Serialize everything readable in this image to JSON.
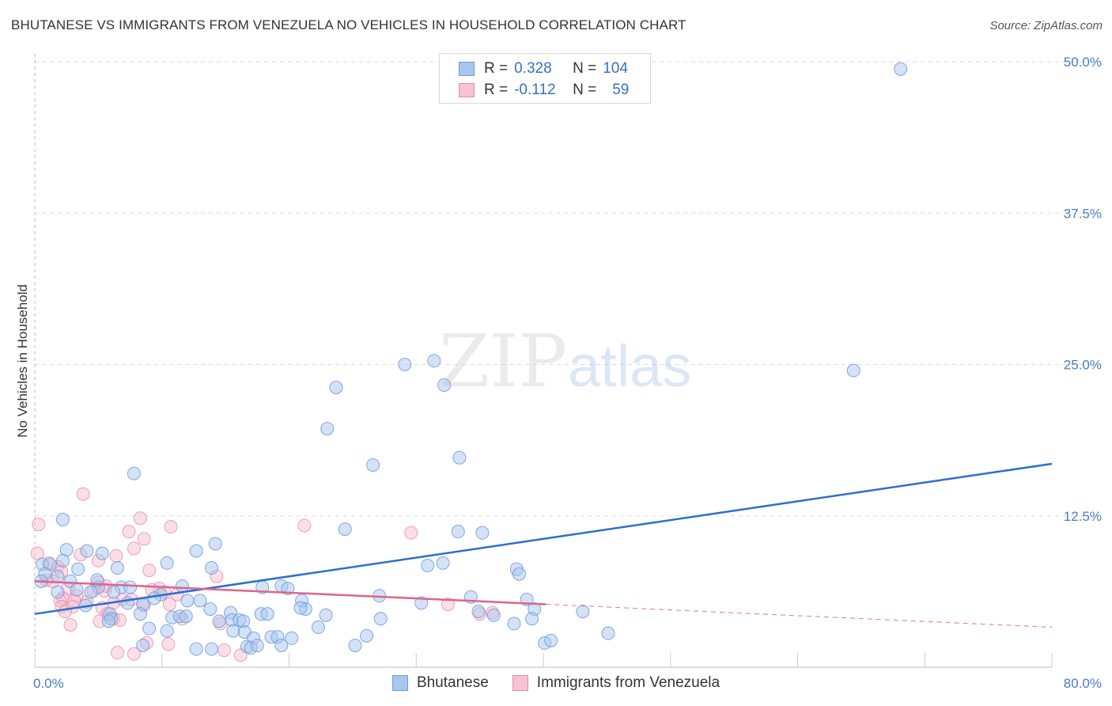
{
  "header": {
    "title": "BHUTANESE VS IMMIGRANTS FROM VENEZUELA NO VEHICLES IN HOUSEHOLD CORRELATION CHART",
    "source": "Source: ZipAtlas.com"
  },
  "watermark": {
    "zip": "ZIP",
    "atlas": "atlas"
  },
  "legend": {
    "rows": [
      {
        "r_label": "R =",
        "r_value": "0.328",
        "n_label": "N =",
        "n_value": "104"
      },
      {
        "r_label": "R =",
        "r_value": "-0.112",
        "n_label": "N =",
        "n_value": "59"
      }
    ]
  },
  "bottom_legend": {
    "series_a": "Bhutanese",
    "series_b": "Immigrants from Venezuela"
  },
  "colors": {
    "blue_fill": "#a8c6ee",
    "blue_stroke": "#6f9ad8",
    "blue_line": "#2b6fd0",
    "pink_fill": "#f6b8cc",
    "pink_stroke": "#e88aa8",
    "pink_line": "#e0638d",
    "grid": "#dddddd",
    "tick_text": "#4a7cc7"
  },
  "chart_data": {
    "type": "scatter",
    "title": "BHUTANESE VS IMMIGRANTS FROM VENEZUELA NO VEHICLES IN HOUSEHOLD CORRELATION CHART",
    "xlabel": "",
    "ylabel": "No Vehicles in Household",
    "xlim": [
      0,
      80
    ],
    "ylim": [
      0,
      50
    ],
    "x_tick_labels": [
      "0.0%",
      "80.0%"
    ],
    "y_ticks": [
      12.5,
      25.0,
      37.5,
      50.0
    ],
    "y_tick_labels": [
      "12.5%",
      "25.0%",
      "37.5%",
      "50.0%"
    ],
    "grid": true,
    "legend_position": "top-center",
    "series": [
      {
        "name": "Bhutanese",
        "R": 0.328,
        "N": 104,
        "trend": {
          "x0": 0,
          "y0": 4.4,
          "x1": 80,
          "y1": 16.8
        },
        "points": [
          [
            68.1,
            49.4
          ],
          [
            64.4,
            24.5
          ],
          [
            31.4,
            25.3
          ],
          [
            29.1,
            25.0
          ],
          [
            32.2,
            23.3
          ],
          [
            23.7,
            23.1
          ],
          [
            23.0,
            19.7
          ],
          [
            26.6,
            16.7
          ],
          [
            33.4,
            17.3
          ],
          [
            7.8,
            16.0
          ],
          [
            2.2,
            12.2
          ],
          [
            24.4,
            11.4
          ],
          [
            33.3,
            11.2
          ],
          [
            35.2,
            11.1
          ],
          [
            14.2,
            10.2
          ],
          [
            2.5,
            9.7
          ],
          [
            4.1,
            9.6
          ],
          [
            5.3,
            9.4
          ],
          [
            12.7,
            9.6
          ],
          [
            10.4,
            8.6
          ],
          [
            0.6,
            8.5
          ],
          [
            1.2,
            8.5
          ],
          [
            3.4,
            8.1
          ],
          [
            6.5,
            8.2
          ],
          [
            13.9,
            8.2
          ],
          [
            30.9,
            8.4
          ],
          [
            32.1,
            8.6
          ],
          [
            37.9,
            8.1
          ],
          [
            38.1,
            7.7
          ],
          [
            0.8,
            7.7
          ],
          [
            1.8,
            7.5
          ],
          [
            2.8,
            7.1
          ],
          [
            5.0,
            6.6
          ],
          [
            6.8,
            6.6
          ],
          [
            7.5,
            6.6
          ],
          [
            11.6,
            6.7
          ],
          [
            17.9,
            6.6
          ],
          [
            19.4,
            6.7
          ],
          [
            19.9,
            6.5
          ],
          [
            3.3,
            6.4
          ],
          [
            4.4,
            6.2
          ],
          [
            6.2,
            6.2
          ],
          [
            9.9,
            6.0
          ],
          [
            1.8,
            6.2
          ],
          [
            9.4,
            5.7
          ],
          [
            12.0,
            5.5
          ],
          [
            13.0,
            5.5
          ],
          [
            21.0,
            5.5
          ],
          [
            27.1,
            5.9
          ],
          [
            34.3,
            5.8
          ],
          [
            38.7,
            5.6
          ],
          [
            30.4,
            5.3
          ],
          [
            7.3,
            5.3
          ],
          [
            8.5,
            5.2
          ],
          [
            13.8,
            4.8
          ],
          [
            15.4,
            4.5
          ],
          [
            17.8,
            4.4
          ],
          [
            21.3,
            4.8
          ],
          [
            22.9,
            4.3
          ],
          [
            34.9,
            4.6
          ],
          [
            39.3,
            4.8
          ],
          [
            43.1,
            4.6
          ],
          [
            36.1,
            4.3
          ],
          [
            37.7,
            3.6
          ],
          [
            39.1,
            4.0
          ],
          [
            5.9,
            4.4
          ],
          [
            6.0,
            4.0
          ],
          [
            8.3,
            4.4
          ],
          [
            10.8,
            4.1
          ],
          [
            11.4,
            4.2
          ],
          [
            11.9,
            4.2
          ],
          [
            14.5,
            3.8
          ],
          [
            15.5,
            3.9
          ],
          [
            16.1,
            3.9
          ],
          [
            16.4,
            3.8
          ],
          [
            18.3,
            4.4
          ],
          [
            20.9,
            4.9
          ],
          [
            27.2,
            4.0
          ],
          [
            22.3,
            3.3
          ],
          [
            9.0,
            3.2
          ],
          [
            10.4,
            3.0
          ],
          [
            15.6,
            3.0
          ],
          [
            16.5,
            2.9
          ],
          [
            18.6,
            2.5
          ],
          [
            19.1,
            2.5
          ],
          [
            20.2,
            2.4
          ],
          [
            17.2,
            2.4
          ],
          [
            26.1,
            2.6
          ],
          [
            25.2,
            1.8
          ],
          [
            40.1,
            2.0
          ],
          [
            40.6,
            2.2
          ],
          [
            45.1,
            2.8
          ],
          [
            16.7,
            1.7
          ],
          [
            17.0,
            1.6
          ],
          [
            17.5,
            1.8
          ],
          [
            19.4,
            1.8
          ],
          [
            12.7,
            1.5
          ],
          [
            13.9,
            1.5
          ],
          [
            8.5,
            1.8
          ],
          [
            4.0,
            5.1
          ],
          [
            5.8,
            3.8
          ],
          [
            2.2,
            8.8
          ],
          [
            4.9,
            7.2
          ],
          [
            0.5,
            7.1
          ]
        ]
      },
      {
        "name": "Immigrants from Venezuela",
        "R": -0.112,
        "N": 59,
        "trend": {
          "x0": 0,
          "y0": 7.1,
          "x1": 40.2,
          "y1": 5.2
        },
        "trend_dashed_to": {
          "x": 80,
          "y": 3.3
        },
        "points": [
          [
            0.3,
            11.8
          ],
          [
            0.2,
            9.4
          ],
          [
            3.8,
            14.3
          ],
          [
            8.3,
            12.3
          ],
          [
            10.7,
            11.6
          ],
          [
            7.4,
            11.2
          ],
          [
            21.2,
            11.7
          ],
          [
            29.6,
            11.1
          ],
          [
            7.8,
            9.8
          ],
          [
            8.6,
            10.6
          ],
          [
            3.6,
            9.3
          ],
          [
            6.4,
            9.2
          ],
          [
            1.1,
            8.6
          ],
          [
            1.8,
            8.3
          ],
          [
            5.0,
            8.8
          ],
          [
            9.0,
            8.0
          ],
          [
            2.1,
            7.9
          ],
          [
            14.3,
            7.5
          ],
          [
            0.9,
            7.2
          ],
          [
            1.4,
            7.1
          ],
          [
            5.0,
            7.0
          ],
          [
            5.6,
            6.7
          ],
          [
            5.5,
            6.3
          ],
          [
            2.6,
            6.5
          ],
          [
            9.8,
            6.5
          ],
          [
            10.2,
            6.2
          ],
          [
            11.2,
            6.0
          ],
          [
            3.3,
            5.9
          ],
          [
            4.6,
            6.3
          ],
          [
            2.2,
            5.7
          ],
          [
            2.0,
            5.5
          ],
          [
            3.1,
            5.5
          ],
          [
            6.9,
            5.6
          ],
          [
            4.1,
            5.4
          ],
          [
            6.2,
            5.3
          ],
          [
            7.6,
            5.6
          ],
          [
            2.1,
            5.0
          ],
          [
            3.0,
            5.0
          ],
          [
            5.3,
            4.9
          ],
          [
            8.6,
            5.1
          ],
          [
            10.6,
            5.2
          ],
          [
            2.4,
            4.6
          ],
          [
            5.7,
            4.4
          ],
          [
            6.2,
            4.0
          ],
          [
            6.7,
            3.9
          ],
          [
            2.8,
            3.5
          ],
          [
            5.1,
            3.8
          ],
          [
            11.6,
            4.0
          ],
          [
            14.6,
            3.6
          ],
          [
            8.8,
            2.0
          ],
          [
            10.5,
            1.9
          ],
          [
            7.8,
            1.1
          ],
          [
            6.5,
            1.2
          ],
          [
            14.9,
            1.4
          ],
          [
            16.2,
            1.0
          ],
          [
            35.0,
            4.4
          ],
          [
            36.0,
            4.5
          ],
          [
            32.5,
            5.2
          ],
          [
            9.2,
            6.4
          ]
        ]
      }
    ]
  }
}
